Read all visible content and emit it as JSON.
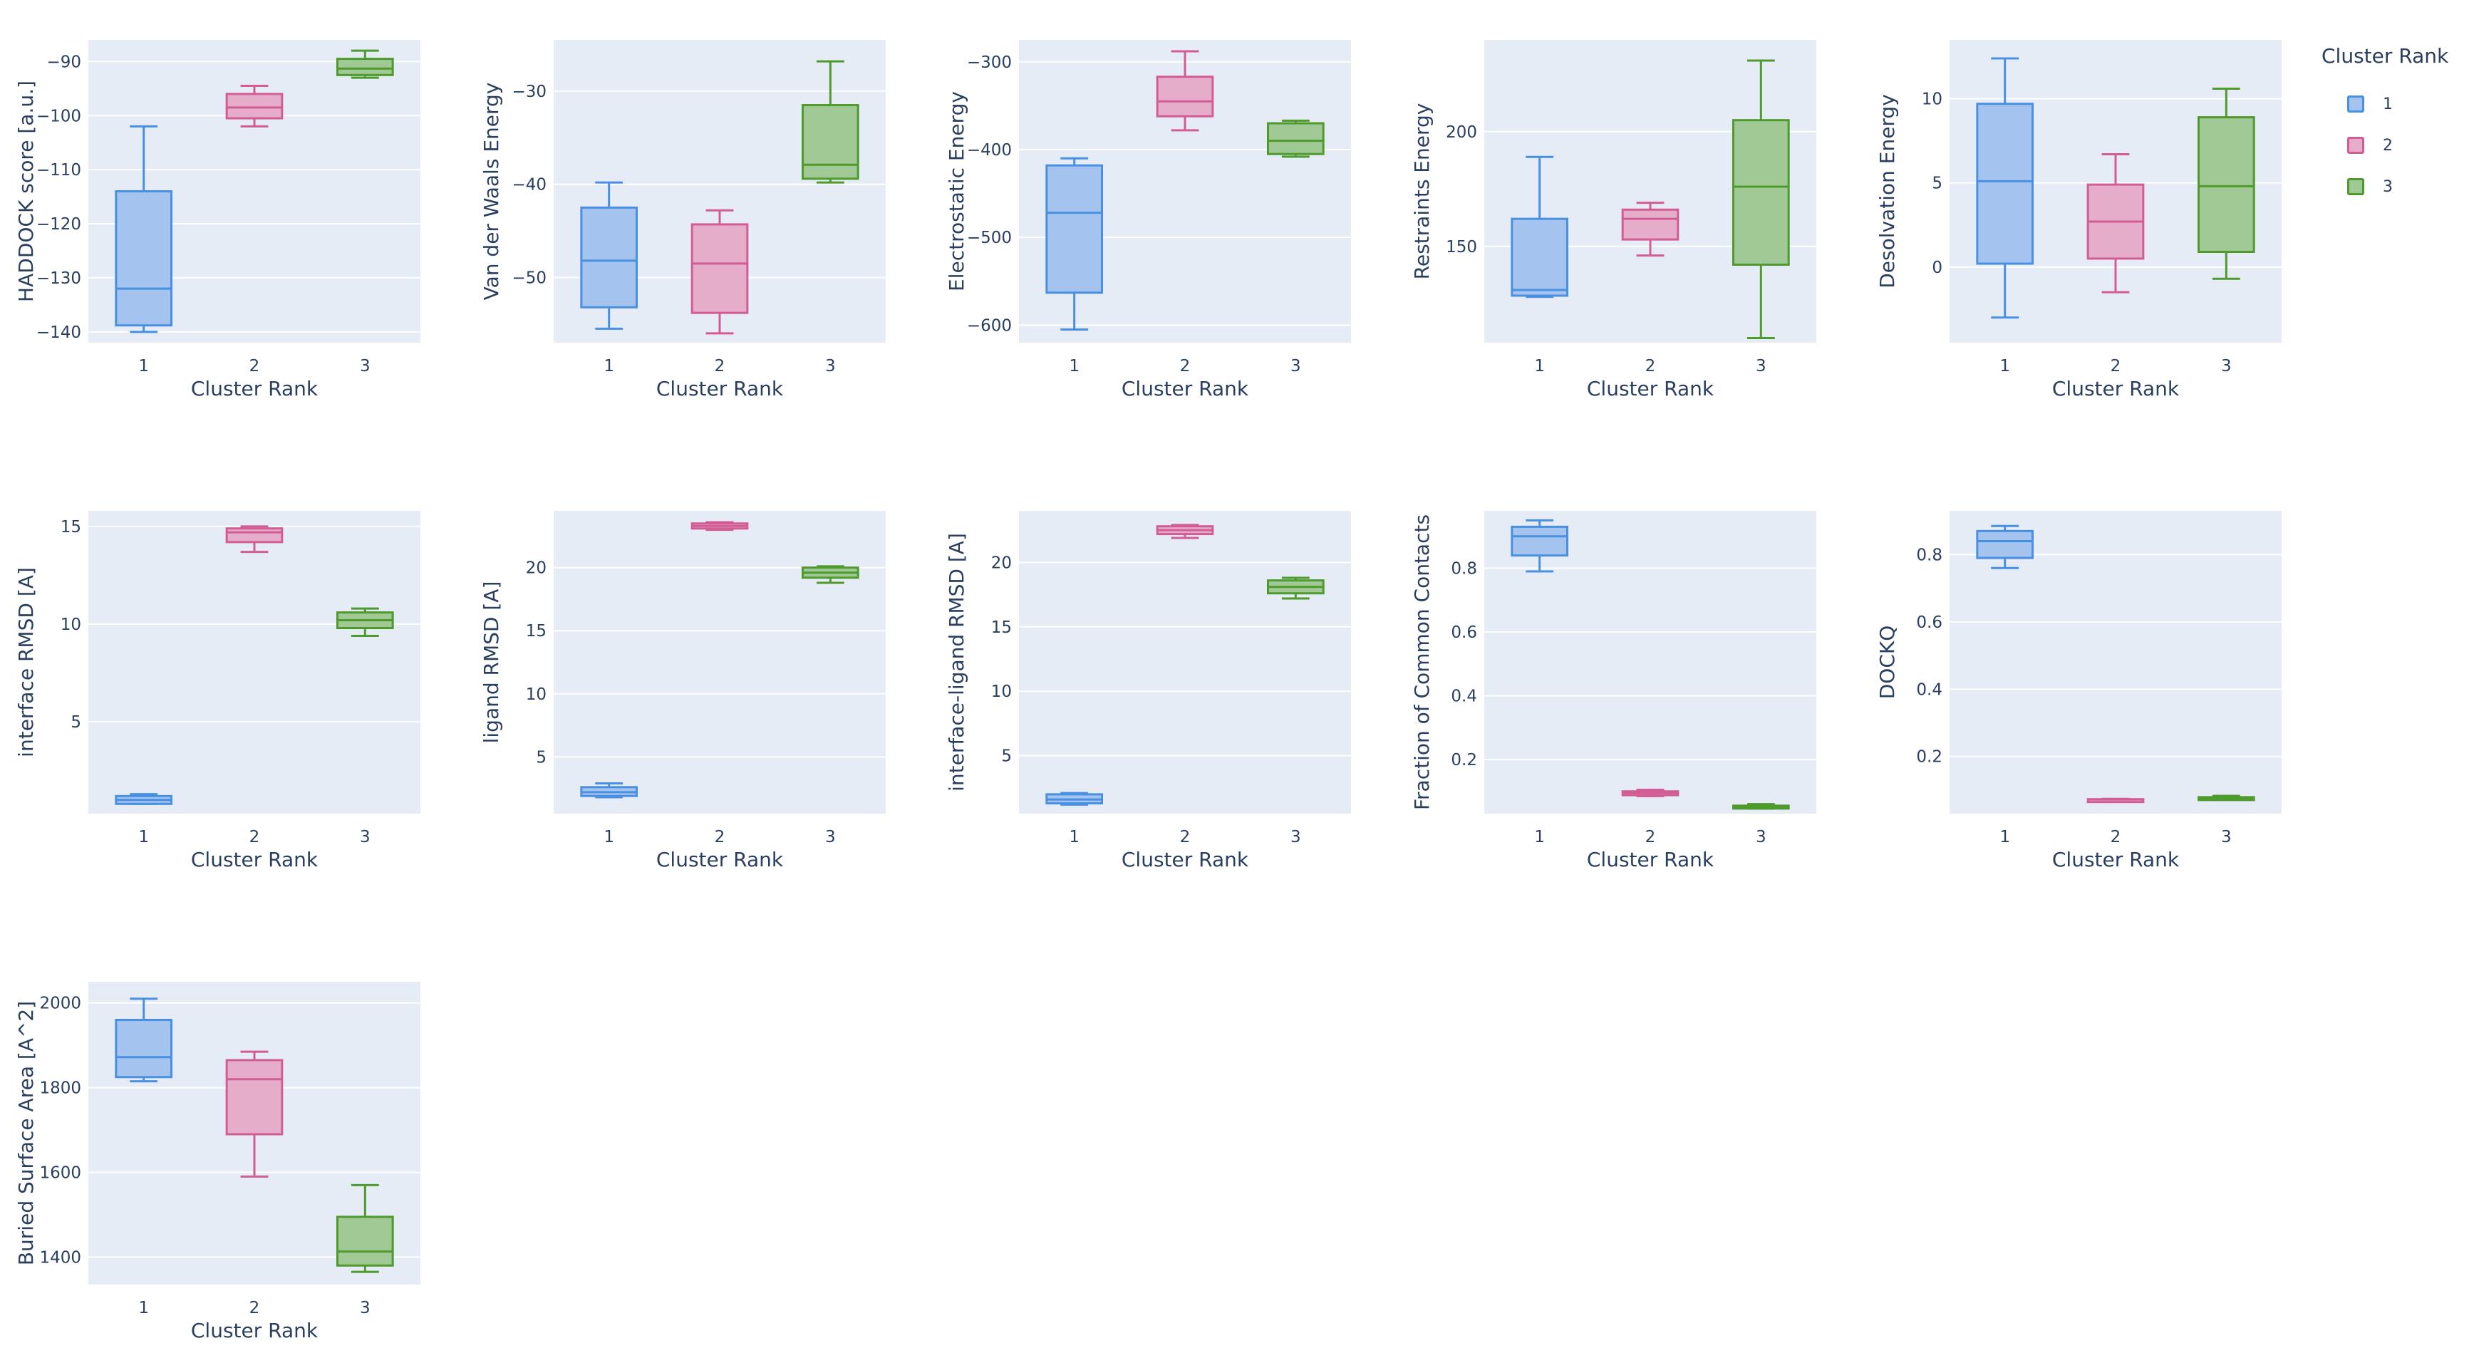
{
  "legend": {
    "title": "Cluster Rank",
    "placement": "top-right",
    "items": [
      {
        "label": "1",
        "color": "#4a90e2",
        "fill": "#a4c3ef"
      },
      {
        "label": "2",
        "color": "#d25d95",
        "fill": "#e6adcb"
      },
      {
        "label": "3",
        "color": "#4e9a2c",
        "fill": "#a0c996"
      }
    ]
  },
  "chart_data": [
    {
      "type": "box",
      "ylabel": "HADDOCK score [a.u.]",
      "xlabel": "Cluster Rank",
      "categories": [
        "1",
        "2",
        "3"
      ],
      "ylim": [
        -142,
        -86
      ],
      "yticks": [
        -140,
        -130,
        -120,
        -110,
        -100,
        -90
      ],
      "boxes": [
        {
          "min": -140,
          "q1": -138.8,
          "median": -132,
          "q3": -114,
          "max": -102
        },
        {
          "min": -102,
          "q1": -100.5,
          "median": -98.5,
          "q3": -96,
          "max": -94.5
        },
        {
          "min": -93,
          "q1": -92.5,
          "median": -91.3,
          "q3": -89.5,
          "max": -88
        }
      ]
    },
    {
      "type": "box",
      "ylabel": "Van der Waals Energy",
      "xlabel": "Cluster Rank",
      "categories": [
        "1",
        "2",
        "3"
      ],
      "ylim": [
        -57,
        -24.5
      ],
      "yticks": [
        -50,
        -40,
        -30
      ],
      "boxes": [
        {
          "min": -55.5,
          "q1": -53.2,
          "median": -48.2,
          "q3": -42.5,
          "max": -39.8
        },
        {
          "min": -56,
          "q1": -53.8,
          "median": -48.5,
          "q3": -44.3,
          "max": -42.8
        },
        {
          "min": -39.8,
          "q1": -39.4,
          "median": -37.9,
          "q3": -31.5,
          "max": -26.8
        }
      ]
    },
    {
      "type": "box",
      "ylabel": "Electrostatic Energy",
      "xlabel": "Cluster Rank",
      "categories": [
        "1",
        "2",
        "3"
      ],
      "ylim": [
        -620,
        -275
      ],
      "yticks": [
        -600,
        -500,
        -400,
        -300
      ],
      "boxes": [
        {
          "min": -605,
          "q1": -563,
          "median": -472,
          "q3": -418,
          "max": -410
        },
        {
          "min": -378,
          "q1": -362,
          "median": -345,
          "q3": -317,
          "max": -288
        },
        {
          "min": -408,
          "q1": -405,
          "median": -390,
          "q3": -370,
          "max": -367
        }
      ]
    },
    {
      "type": "box",
      "ylabel": "Restraints Energy",
      "xlabel": "Cluster Rank",
      "categories": [
        "1",
        "2",
        "3"
      ],
      "ylim": [
        108,
        240
      ],
      "yticks": [
        150,
        200
      ],
      "boxes": [
        {
          "min": 128,
          "q1": 128.5,
          "median": 131,
          "q3": 162,
          "max": 189
        },
        {
          "min": 146,
          "q1": 153,
          "median": 162,
          "q3": 166,
          "max": 169
        },
        {
          "min": 110,
          "q1": 142,
          "median": 176,
          "q3": 205,
          "max": 231
        }
      ]
    },
    {
      "type": "box",
      "ylabel": "Desolvation Energy",
      "xlabel": "Cluster Rank",
      "categories": [
        "1",
        "2",
        "3"
      ],
      "ylim": [
        -4.5,
        13.5
      ],
      "yticks": [
        0,
        5,
        10
      ],
      "boxes": [
        {
          "min": -3,
          "q1": 0.2,
          "median": 5.1,
          "q3": 9.7,
          "max": 12.4
        },
        {
          "min": -1.5,
          "q1": 0.5,
          "median": 2.7,
          "q3": 4.9,
          "max": 6.7
        },
        {
          "min": -0.7,
          "q1": 0.9,
          "median": 4.8,
          "q3": 8.9,
          "max": 10.6
        }
      ]
    },
    {
      "type": "box",
      "ylabel": "interface RMSD [A]",
      "xlabel": "Cluster Rank",
      "categories": [
        "1",
        "2",
        "3"
      ],
      "ylim": [
        0.3,
        15.8
      ],
      "yticks": [
        5,
        10,
        15
      ],
      "boxes": [
        {
          "min": 0.8,
          "q1": 0.8,
          "median": 1.0,
          "q3": 1.2,
          "max": 1.3
        },
        {
          "min": 13.7,
          "q1": 14.2,
          "median": 14.7,
          "q3": 14.9,
          "max": 15.0
        },
        {
          "min": 9.4,
          "q1": 9.8,
          "median": 10.2,
          "q3": 10.6,
          "max": 10.8
        }
      ]
    },
    {
      "type": "box",
      "ylabel": "ligand RMSD [A]",
      "xlabel": "Cluster Rank",
      "categories": [
        "1",
        "2",
        "3"
      ],
      "ylim": [
        0.5,
        24.5
      ],
      "yticks": [
        5,
        10,
        15,
        20
      ],
      "boxes": [
        {
          "min": 1.8,
          "q1": 1.9,
          "median": 2.2,
          "q3": 2.6,
          "max": 2.9
        },
        {
          "min": 23.0,
          "q1": 23.1,
          "median": 23.3,
          "q3": 23.5,
          "max": 23.6
        },
        {
          "min": 18.8,
          "q1": 19.2,
          "median": 19.6,
          "q3": 20.0,
          "max": 20.1
        }
      ]
    },
    {
      "type": "box",
      "ylabel": "interface-ligand RMSD [A]",
      "xlabel": "Cluster Rank",
      "categories": [
        "1",
        "2",
        "3"
      ],
      "ylim": [
        0.5,
        24
      ],
      "yticks": [
        5,
        10,
        15,
        20
      ],
      "boxes": [
        {
          "min": 1.2,
          "q1": 1.3,
          "median": 1.6,
          "q3": 2.0,
          "max": 2.1
        },
        {
          "min": 21.9,
          "q1": 22.2,
          "median": 22.5,
          "q3": 22.8,
          "max": 22.9
        },
        {
          "min": 17.2,
          "q1": 17.6,
          "median": 18.1,
          "q3": 18.6,
          "max": 18.8
        }
      ]
    },
    {
      "type": "box",
      "ylabel": "Fraction of Common Contacts",
      "xlabel": "Cluster Rank",
      "categories": [
        "1",
        "2",
        "3"
      ],
      "ylim": [
        0.03,
        0.98
      ],
      "yticks": [
        0.2,
        0.4,
        0.6,
        0.8
      ],
      "boxes": [
        {
          "min": 0.79,
          "q1": 0.84,
          "median": 0.9,
          "q3": 0.93,
          "max": 0.95
        },
        {
          "min": 0.085,
          "q1": 0.088,
          "median": 0.095,
          "q3": 0.1,
          "max": 0.105
        },
        {
          "min": 0.046,
          "q1": 0.048,
          "median": 0.05,
          "q3": 0.055,
          "max": 0.06
        }
      ]
    },
    {
      "type": "box",
      "ylabel": "DOCKQ",
      "xlabel": "Cluster Rank",
      "categories": [
        "1",
        "2",
        "3"
      ],
      "ylim": [
        0.03,
        0.93
      ],
      "yticks": [
        0.2,
        0.4,
        0.6,
        0.8
      ],
      "boxes": [
        {
          "min": 0.76,
          "q1": 0.79,
          "median": 0.84,
          "q3": 0.87,
          "max": 0.885
        },
        {
          "min": 0.07,
          "q1": 0.071,
          "median": 0.072,
          "q3": 0.073,
          "max": 0.074
        },
        {
          "min": 0.071,
          "q1": 0.073,
          "median": 0.076,
          "q3": 0.079,
          "max": 0.083
        }
      ]
    },
    {
      "type": "box",
      "ylabel": "Buried Surface Area [A^2]",
      "xlabel": "Cluster Rank",
      "categories": [
        "1",
        "2",
        "3"
      ],
      "ylim": [
        1335,
        2050
      ],
      "yticks": [
        1400,
        1600,
        1800,
        2000
      ],
      "boxes": [
        {
          "min": 1815,
          "q1": 1825,
          "median": 1872,
          "q3": 1960,
          "max": 2010
        },
        {
          "min": 1590,
          "q1": 1690,
          "median": 1820,
          "q3": 1865,
          "max": 1885
        },
        {
          "min": 1365,
          "q1": 1380,
          "median": 1413,
          "q3": 1495,
          "max": 1570
        }
      ]
    }
  ]
}
